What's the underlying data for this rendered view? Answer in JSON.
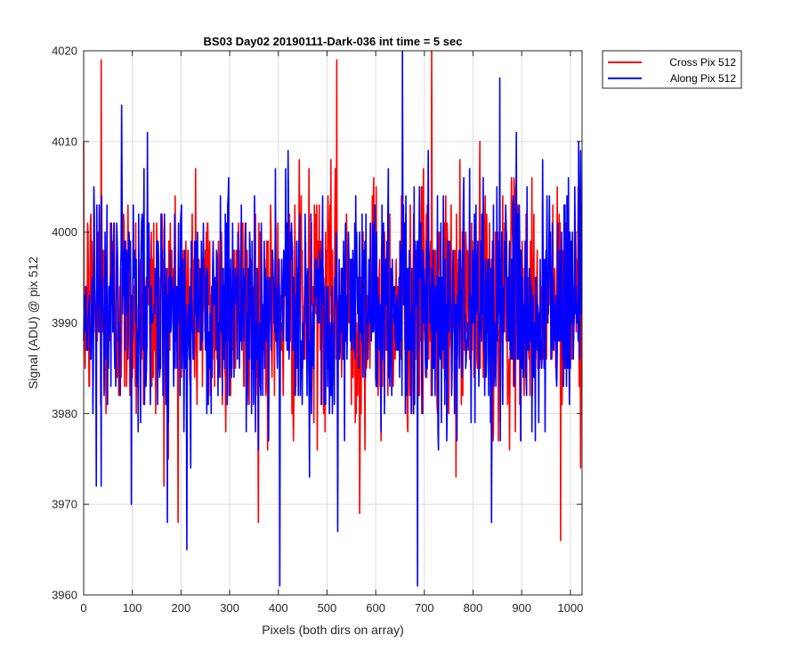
{
  "chart_data": {
    "type": "line",
    "title": "BS03 Day02 20190111-Dark-036 int time = 5 sec",
    "xlabel": "Pixels (both dirs on array)",
    "ylabel": "Signal (ADU) @ pix 512",
    "xlim": [
      0,
      1024
    ],
    "ylim": [
      3960,
      4020
    ],
    "xticks": [
      0,
      100,
      200,
      300,
      400,
      500,
      600,
      700,
      800,
      900,
      1000
    ],
    "yticks": [
      3960,
      3970,
      3980,
      3990,
      4000,
      4010,
      4020
    ],
    "grid": true,
    "legend_position": "outside-top-right",
    "series": [
      {
        "name": "Cross Pix 512",
        "color": "#ff0000",
        "mean": 3992,
        "noise_std": 6.5,
        "n_points": 1024,
        "peaks": [
          {
            "x": 36,
            "y": 4019
          },
          {
            "x": 520,
            "y": 4019
          },
          {
            "x": 715,
            "y": 4020
          }
        ],
        "troughs": [
          {
            "x": 567,
            "y": 3969
          },
          {
            "x": 980,
            "y": 3966
          },
          {
            "x": 165,
            "y": 3972
          }
        ]
      },
      {
        "name": "Along Pix 512",
        "color": "#0000ff",
        "mean": 3992,
        "noise_std": 6.5,
        "n_points": 1024,
        "peaks": [
          {
            "x": 655,
            "y": 4020
          },
          {
            "x": 855,
            "y": 4017
          },
          {
            "x": 1017,
            "y": 4010
          }
        ],
        "troughs": [
          {
            "x": 403,
            "y": 3961
          },
          {
            "x": 686,
            "y": 3961
          },
          {
            "x": 212,
            "y": 3965
          },
          {
            "x": 522,
            "y": 3967
          },
          {
            "x": 838,
            "y": 3968
          },
          {
            "x": 98,
            "y": 3970
          }
        ]
      }
    ]
  }
}
